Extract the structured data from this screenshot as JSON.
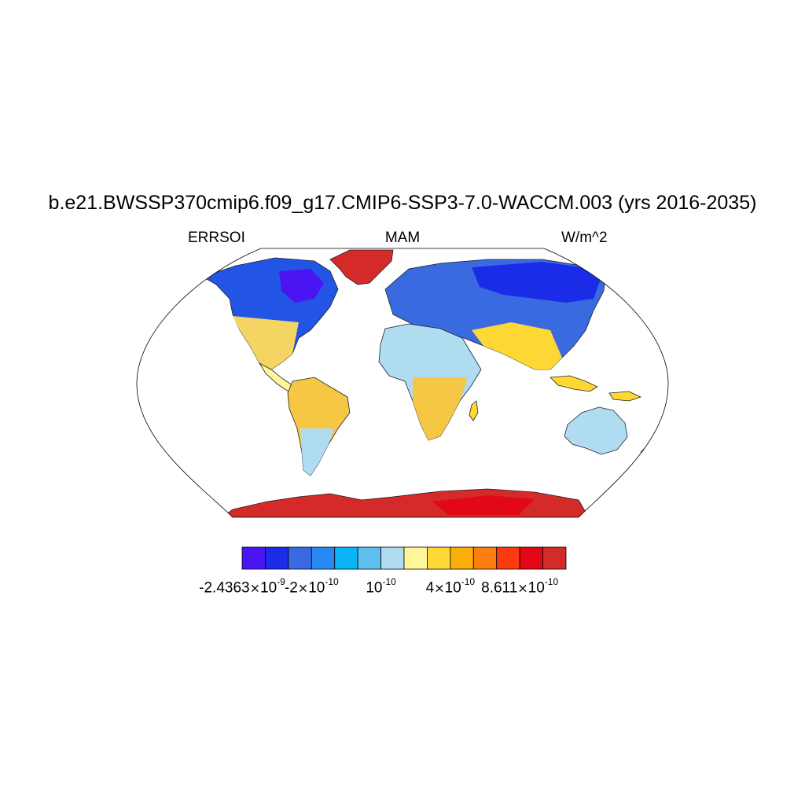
{
  "figure": {
    "title": "b.e21.BWSSP370cmip6.f09_g17.CMIP6-SSP3-7.0-WACCM.003 (yrs 2016-2035)",
    "left_label": "ERRSOI",
    "center_label": "MAM",
    "right_label": "W/m^2"
  },
  "map": {
    "projection": "Robinson",
    "fill_color": "#ffffff",
    "border_color": "#000000"
  },
  "colorbar": {
    "colors": [
      "#4b14f2",
      "#1a2ce8",
      "#3a6ae0",
      "#2888f4",
      "#08b4f6",
      "#5fc0f0",
      "#b0dcf2",
      "#fff59a",
      "#fdd835",
      "#fbad0b",
      "#fb7f10",
      "#fc3a12",
      "#e30816",
      "#d42a2a"
    ],
    "labels": [
      {
        "mantissa": "-2.4363",
        "base": "10",
        "exponent": "-9",
        "position": 0
      },
      {
        "mantissa": "-2",
        "base": "10",
        "exponent": "-10",
        "position": 3
      },
      {
        "mantissa": "",
        "base": "10",
        "exponent": "-10",
        "position": 6
      },
      {
        "mantissa": "4",
        "base": "10",
        "exponent": "-10",
        "position": 9
      },
      {
        "mantissa": "8.611",
        "base": "10",
        "exponent": "-10",
        "position": 12
      }
    ]
  }
}
